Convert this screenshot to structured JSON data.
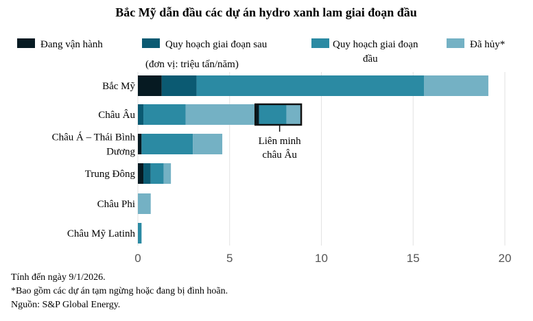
{
  "chart_data": {
    "type": "bar",
    "orientation": "horizontal",
    "stacked": true,
    "title": "Bắc Mỹ dẫn đầu các dự án hydro xanh lam giai đoạn đầu",
    "unit_label": "(đơn vị: triệu tấn/năm)",
    "categories": [
      {
        "label": [
          "Bắc Mỹ"
        ]
      },
      {
        "label": [
          "Châu Âu"
        ]
      },
      {
        "label": [
          "Châu Á – Thái Bình",
          "Dương"
        ]
      },
      {
        "label": [
          "Trung Đông"
        ]
      },
      {
        "label": [
          "Châu Phi"
        ]
      },
      {
        "label": [
          "Châu Mỹ Latinh"
        ]
      }
    ],
    "series": [
      {
        "name": "Đang vận hành",
        "legend_label": [
          "Đang vận hành"
        ],
        "color": "#061a22",
        "values": [
          1.3,
          0.0,
          0.2,
          0.3,
          0.0,
          0.0
        ]
      },
      {
        "name": "Quy hoạch giai đoạn sau",
        "legend_label": [
          "Quy hoạch giai đoạn sau"
        ],
        "color": "#0b5a72",
        "values": [
          1.9,
          0.3,
          0.0,
          0.4,
          0.0,
          0.0
        ]
      },
      {
        "name": "Quy hoạch giai đoạn đầu",
        "legend_label": [
          "Quy hoạch giai đoạn",
          "đầu"
        ],
        "color": "#2b8aa3",
        "values": [
          12.4,
          2.3,
          2.8,
          0.7,
          0.0,
          0.2
        ]
      },
      {
        "name": "Đã hủy*",
        "legend_label": [
          "Đã hủy*"
        ],
        "color": "#74b1c4",
        "values": [
          3.5,
          3.9,
          1.6,
          0.4,
          0.7,
          0.0
        ]
      }
    ],
    "xlim": [
      0,
      20
    ],
    "xticks": [
      0,
      5,
      10,
      15,
      20
    ],
    "grid": true,
    "legend_position": "top",
    "annotation": {
      "category": "Châu Âu",
      "label": [
        "Liên minh",
        "châu Âu"
      ],
      "segments": [
        {
          "color": "#061a22",
          "value": 0.2
        },
        {
          "color": "#2b8aa3",
          "value": 1.5
        },
        {
          "color": "#74b1c4",
          "value": 0.8
        }
      ],
      "start": 6.4
    },
    "footnotes": [
      "Tính đến ngày 9/1/2026.",
      "*Bao gồm các dự án tạm ngừng hoặc đang bị đình hoãn.",
      "Nguồn: S&P Global Energy."
    ]
  }
}
